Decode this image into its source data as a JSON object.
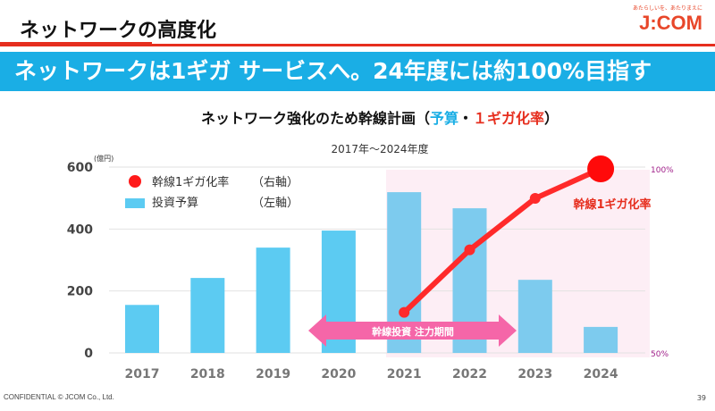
{
  "header": {
    "title": "ネットワークの高度化",
    "logo_tagline": "あたらしいを、あたりまえに",
    "logo_text": "J:COM"
  },
  "banner": {
    "text": "ネットワークは1ギガ サービスへ。24年度には約100%目指す"
  },
  "footer": {
    "confidential": "CONFIDENTIAL   © JCOM Co., Ltd.",
    "page_number": "39"
  },
  "colors": {
    "accent_red": "#e62e1e",
    "banner_blue": "#1aaee5",
    "bar_blue": "#5ccbf2",
    "line_red": "#ff2a2a",
    "pink_band": "#fdeef5",
    "arrow_pink": "#f566a8"
  },
  "chart_data": {
    "type": "bar+line",
    "title_parts": [
      "ネットワーク強化のため幹線計画（",
      "予算",
      "・",
      "１ギガ化率",
      "）"
    ],
    "subtitle": "2017年～2024年度",
    "categories": [
      "2017",
      "2018",
      "2019",
      "2020",
      "2021",
      "2022",
      "2023",
      "2024"
    ],
    "left_axis": {
      "unit": "(億円)",
      "ticks": [
        "0",
        "200",
        "400",
        "600"
      ],
      "range": [
        0,
        600
      ]
    },
    "right_axis": {
      "ticks": [
        "50%",
        "100%"
      ],
      "range": [
        50,
        100
      ]
    },
    "series": [
      {
        "name": "投資予算",
        "axis_note": "（左軸）",
        "type": "bar",
        "values": [
          155,
          242,
          340,
          395,
          519,
          467,
          236,
          84
        ]
      },
      {
        "name": "幹線1ギガ化率",
        "axis_note": "（右軸）",
        "type": "line",
        "x": [
          "2021",
          "2022",
          "2023",
          "2024"
        ],
        "values": [
          61,
          78,
          92,
          100
        ]
      }
    ],
    "line_label": "幹線1ギガ化率",
    "annotation": "幹線投資 注力期間",
    "grid": true,
    "legend": "top-left"
  }
}
